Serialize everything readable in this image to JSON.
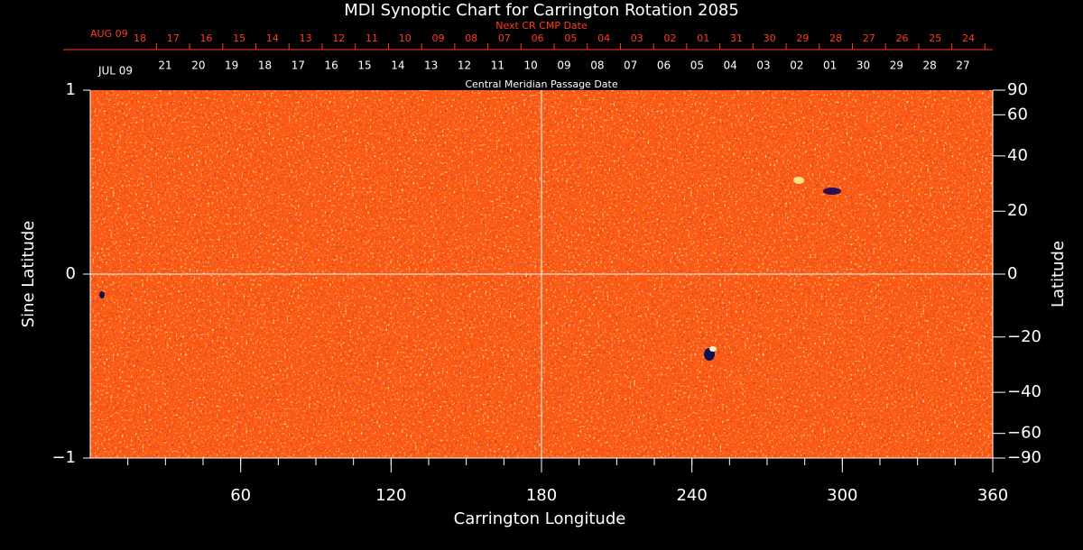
{
  "chart_data": {
    "type": "synoptic-map",
    "title": "MDI Synoptic Chart for Carrington Rotation 2085",
    "x_label": "Carrington Longitude",
    "y_label": "Sine Latitude",
    "y2_label": "Latitude",
    "xlim": [
      0,
      360
    ],
    "xticks": [
      60,
      120,
      180,
      240,
      300,
      360
    ],
    "ylim": [
      -1,
      1
    ],
    "yticks": [
      {
        "value": -1,
        "label": "−1"
      },
      0,
      1
    ],
    "y2lim": [
      -90,
      90
    ],
    "y2scale": "sine",
    "y2ticks": [
      {
        "value": -90,
        "label": "−90"
      },
      {
        "value": -60,
        "label": "−60"
      },
      {
        "value": -40,
        "label": "−40"
      },
      {
        "value": -20,
        "label": "−20"
      },
      0,
      20,
      40,
      60,
      90
    ],
    "top_axis": {
      "title": "Next CR CMP Date",
      "month": "AUG 09",
      "color": "#ff3b1f",
      "dates": [
        "18",
        "17",
        "16",
        "15",
        "14",
        "13",
        "12",
        "11",
        "10",
        "09",
        "08",
        "07",
        "06",
        "05",
        "04",
        "03",
        "02",
        "01",
        "31",
        "30",
        "29",
        "28",
        "27",
        "26",
        "25",
        "24"
      ]
    },
    "cmp_axis": {
      "title": "Central Meridian Passage Date",
      "month": "JUL 09",
      "color": "#ffffff",
      "dates": [
        "21",
        "20",
        "19",
        "18",
        "17",
        "16",
        "15",
        "14",
        "13",
        "12",
        "11",
        "10",
        "09",
        "08",
        "07",
        "06",
        "05",
        "04",
        "03",
        "02",
        "01",
        "30",
        "29",
        "28",
        "27"
      ]
    },
    "colors": {
      "background": "#000000",
      "map": "#ff5a10",
      "axis": "#ffffff"
    }
  }
}
